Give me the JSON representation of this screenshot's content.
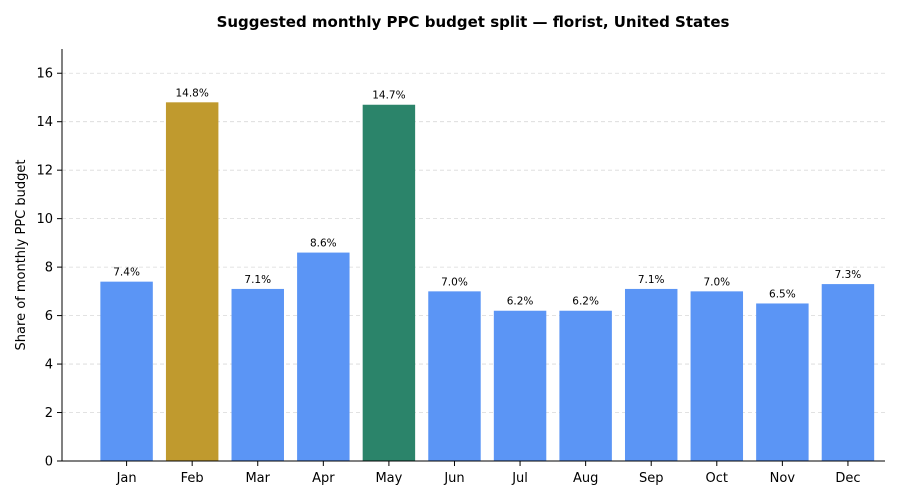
{
  "chart_data": {
    "type": "bar",
    "title": "Suggested monthly PPC budget split — florist, United States",
    "xlabel": "",
    "ylabel": "Share of monthly PPC budget",
    "categories": [
      "Jan",
      "Feb",
      "Mar",
      "Apr",
      "May",
      "Jun",
      "Jul",
      "Aug",
      "Sep",
      "Oct",
      "Nov",
      "Dec"
    ],
    "values": [
      7.4,
      14.8,
      7.1,
      8.6,
      14.7,
      7.0,
      6.2,
      6.2,
      7.1,
      7.0,
      6.5,
      7.3
    ],
    "data_labels": [
      "7.4%",
      "14.8%",
      "7.1%",
      "8.6%",
      "14.7%",
      "7.0%",
      "6.2%",
      "6.2%",
      "7.1%",
      "7.0%",
      "6.5%",
      "7.3%"
    ],
    "bar_colors": [
      "#5b95f5",
      "#c09a2e",
      "#5b95f5",
      "#5b95f5",
      "#2b846a",
      "#5b95f5",
      "#5b95f5",
      "#5b95f5",
      "#5b95f5",
      "#5b95f5",
      "#5b95f5",
      "#5b95f5"
    ],
    "ylim": [
      0,
      17
    ],
    "yticks": [
      0,
      2,
      4,
      6,
      8,
      10,
      12,
      14,
      16
    ],
    "grid": true,
    "legend": "none"
  }
}
